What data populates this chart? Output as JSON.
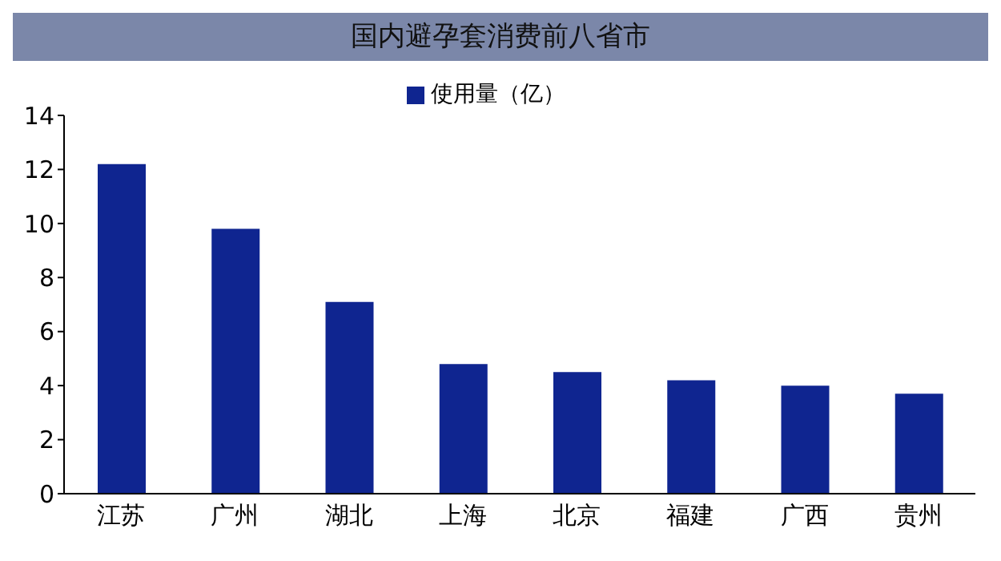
{
  "chart_data": {
    "type": "bar",
    "title": "国内避孕套消费前八省市",
    "categories": [
      "江苏",
      "广州",
      "湖北",
      "上海",
      "北京",
      "福建",
      "广西",
      "贵州"
    ],
    "series": [
      {
        "name": "使用量（亿）",
        "color": "#0f2590",
        "values": [
          12.2,
          9.8,
          7.1,
          4.8,
          4.5,
          4.2,
          4.0,
          3.7
        ]
      }
    ],
    "ylim": [
      0,
      14
    ],
    "yticks": [
      0,
      2,
      4,
      6,
      8,
      10,
      12,
      14
    ],
    "grid": false,
    "legend": "top"
  }
}
